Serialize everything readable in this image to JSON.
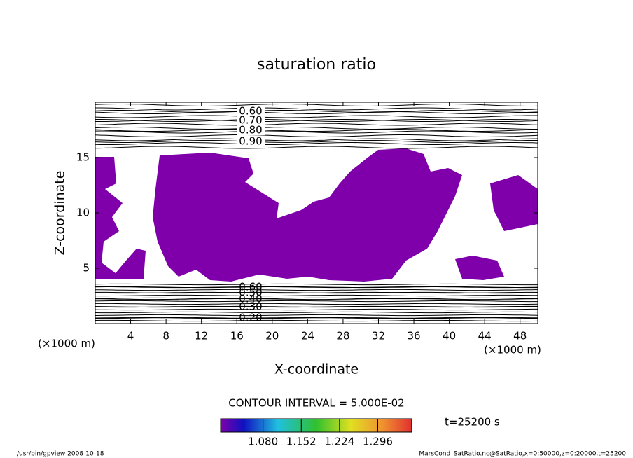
{
  "chart_data": {
    "type": "contour",
    "title": "saturation ratio",
    "x_label": "X-coordinate",
    "y_label": "Z-coordinate",
    "x_unit": "(×1000 m)",
    "y_unit": "(×1000 m)",
    "xlim": [
      0,
      50
    ],
    "xticks": [
      4,
      8,
      12,
      16,
      20,
      24,
      28,
      32,
      36,
      40,
      44,
      48
    ],
    "ylim": [
      0,
      20
    ],
    "yticks": [
      5,
      10,
      15
    ],
    "fill_color": "#7f00aa",
    "contour_interval": "CONTOUR INTERVAL = 5.000E-02",
    "upper_levels": [
      {
        "value": 0.6,
        "label": "0.60"
      },
      {
        "value": 0.7,
        "label": "0.70"
      },
      {
        "value": 0.8,
        "label": "0.80"
      },
      {
        "value": 0.9,
        "label": "0.90"
      }
    ],
    "lower_levels": [
      {
        "value": 0.6,
        "label": "0.60"
      },
      {
        "value": 0.5,
        "label": "0.50"
      },
      {
        "value": 0.4,
        "label": "0.40"
      },
      {
        "value": 0.3,
        "label": "0.30"
      },
      {
        "value": 0.2,
        "label": "0.20"
      }
    ],
    "colorbar": {
      "lim": [
        1.0,
        1.36
      ],
      "ticks": [
        {
          "value": 1.08,
          "label": "1.080"
        },
        {
          "value": 1.152,
          "label": "1.152"
        },
        {
          "value": 1.224,
          "label": "1.224"
        },
        {
          "value": 1.296,
          "label": "1.296"
        }
      ]
    },
    "time_label": "t=25200 s",
    "footer_left": "/usr/bin/gpview   2008-10-18",
    "footer_right": "MarsCond_SatRatio.nc@SatRatio,x=0:50000,z=0:20000,t=25200"
  }
}
